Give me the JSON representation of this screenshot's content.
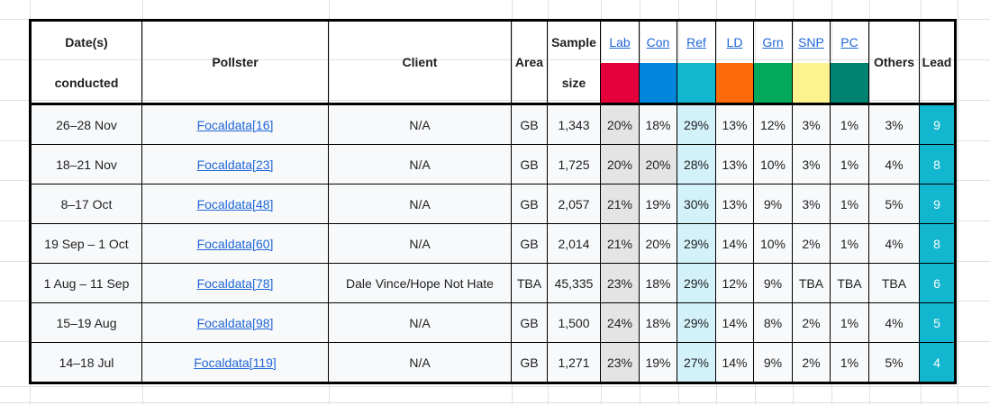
{
  "table": {
    "headers": {
      "date_line1": "Date(s)",
      "date_line2": "conducted",
      "pollster": "Pollster",
      "client": "Client",
      "area": "Area",
      "sample_line1": "Sample",
      "sample_line2": "size",
      "others": "Others",
      "lead": "Lead"
    },
    "parties": [
      {
        "key": "lab",
        "label": "Lab",
        "color": "#E4003B"
      },
      {
        "key": "con",
        "label": "Con",
        "color": "#0087DC"
      },
      {
        "key": "ref",
        "label": "Ref",
        "color": "#12B6CF"
      },
      {
        "key": "ld",
        "label": "LD",
        "color": "#FC6A09"
      },
      {
        "key": "grn",
        "label": "Grn",
        "color": "#02A95B"
      },
      {
        "key": "snp",
        "label": "SNP",
        "color": "#FDF38E"
      },
      {
        "key": "pc",
        "label": "PC",
        "color": "#008270"
      }
    ],
    "rows": [
      {
        "date": "26–28 Nov",
        "pollster": "Focaldata[16]",
        "client": "N/A",
        "area": "GB",
        "sample": "1,343",
        "values": {
          "lab": "20%",
          "con": "18%",
          "ref": "29%",
          "ld": "13%",
          "grn": "12%",
          "snp": "3%",
          "pc": "1%"
        },
        "others": "3%",
        "lead": "9",
        "leader": "ref",
        "second": [
          "lab"
        ]
      },
      {
        "date": "18–21 Nov",
        "pollster": "Focaldata[23]",
        "client": "N/A",
        "area": "GB",
        "sample": "1,725",
        "values": {
          "lab": "20%",
          "con": "20%",
          "ref": "28%",
          "ld": "13%",
          "grn": "10%",
          "snp": "3%",
          "pc": "1%"
        },
        "others": "4%",
        "lead": "8",
        "leader": "ref",
        "second": [
          "lab",
          "con"
        ]
      },
      {
        "date": "8–17 Oct",
        "pollster": "Focaldata[48]",
        "client": "N/A",
        "area": "GB",
        "sample": "2,057",
        "values": {
          "lab": "21%",
          "con": "19%",
          "ref": "30%",
          "ld": "13%",
          "grn": "9%",
          "snp": "3%",
          "pc": "1%"
        },
        "others": "5%",
        "lead": "9",
        "leader": "ref",
        "second": [
          "lab"
        ]
      },
      {
        "date": "19 Sep – 1 Oct",
        "pollster": "Focaldata[60]",
        "client": "N/A",
        "area": "GB",
        "sample": "2,014",
        "values": {
          "lab": "21%",
          "con": "20%",
          "ref": "29%",
          "ld": "14%",
          "grn": "10%",
          "snp": "2%",
          "pc": "1%"
        },
        "others": "4%",
        "lead": "8",
        "leader": "ref",
        "second": [
          "lab"
        ]
      },
      {
        "date": "1 Aug – 11 Sep",
        "pollster": "Focaldata[78]",
        "client": "Dale Vince/Hope Not Hate",
        "area": "TBA",
        "sample": "45,335",
        "values": {
          "lab": "23%",
          "con": "18%",
          "ref": "29%",
          "ld": "12%",
          "grn": "9%",
          "snp": "TBA",
          "pc": "TBA"
        },
        "others": "TBA",
        "lead": "6",
        "leader": "ref",
        "second": [
          "lab"
        ]
      },
      {
        "date": "15–19 Aug",
        "pollster": "Focaldata[98]",
        "client": "N/A",
        "area": "GB",
        "sample": "1,500",
        "values": {
          "lab": "24%",
          "con": "18%",
          "ref": "29%",
          "ld": "14%",
          "grn": "8%",
          "snp": "2%",
          "pc": "1%"
        },
        "others": "4%",
        "lead": "5",
        "leader": "ref",
        "second": [
          "lab"
        ]
      },
      {
        "date": "14–18 Jul",
        "pollster": "Focaldata[119]",
        "client": "N/A",
        "area": "GB",
        "sample": "1,271",
        "values": {
          "lab": "23%",
          "con": "19%",
          "ref": "27%",
          "ld": "14%",
          "grn": "9%",
          "snp": "2%",
          "pc": "1%"
        },
        "others": "5%",
        "lead": "4",
        "leader": "ref",
        "second": [
          "lab"
        ]
      }
    ],
    "colors": {
      "row_bg": "#F8F9FA",
      "second_place_bg": "#E4E4E4",
      "leader_bg": "#D3F1F9",
      "lead_cell_bg": "#12B6CF",
      "lead_text": "#FDFDFD",
      "link": "#2167D6",
      "border": "#000000",
      "grid": "#E0E0E0"
    }
  }
}
